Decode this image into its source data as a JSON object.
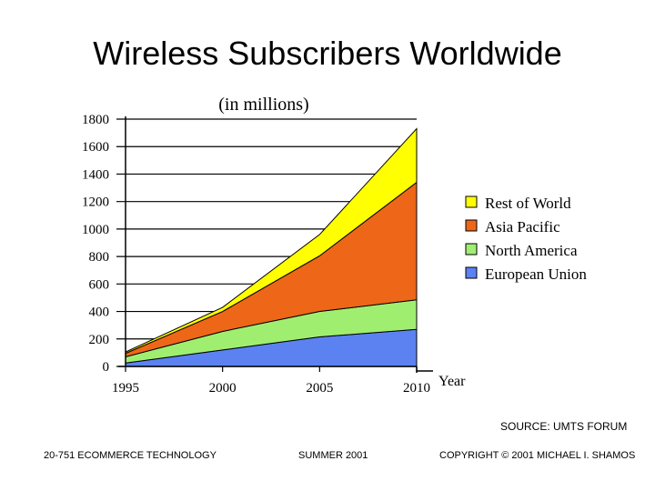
{
  "slide_title": "Wireless Subscribers Worldwide",
  "source": "SOURCE: UMTS FORUM",
  "footer": {
    "left": "20-751 ECOMMERCE TECHNOLOGY",
    "center": "SUMMER 2001",
    "right": "COPYRIGHT © 2001 MICHAEL I. SHAMOS"
  },
  "chart_data": {
    "type": "area",
    "stacked": true,
    "title": "(in millions)",
    "xlabel": "Year",
    "ylabel": "",
    "x": [
      1995,
      2000,
      2005,
      2010
    ],
    "xticks": [
      "1995",
      "2000",
      "2005",
      "2010"
    ],
    "ylim": [
      0,
      1800
    ],
    "yticks": [
      "0",
      "200",
      "400",
      "600",
      "800",
      "1000",
      "1200",
      "1400",
      "1600",
      "1800"
    ],
    "grid": true,
    "legend_position": "right",
    "series": [
      {
        "name": "European Union",
        "color": "#5b82f0",
        "values": [
          25,
          120,
          215,
          270
        ]
      },
      {
        "name": "North America",
        "color": "#a0ee70",
        "values": [
          45,
          135,
          185,
          215
        ]
      },
      {
        "name": "Asia Pacific",
        "color": "#ee6618",
        "values": [
          25,
          145,
          405,
          855
        ]
      },
      {
        "name": "Rest of World",
        "color": "#ffff00",
        "values": [
          10,
          30,
          155,
          390
        ]
      }
    ],
    "legend_order": [
      "Rest of World",
      "Asia Pacific",
      "North America",
      "European Union"
    ]
  }
}
